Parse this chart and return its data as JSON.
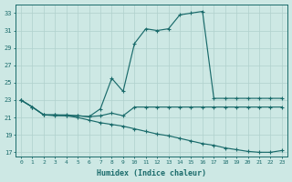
{
  "xlabel": "Humidex (Indice chaleur)",
  "bg_color": "#cde8e4",
  "line_color": "#1a6b6b",
  "grid_color": "#b0d0cc",
  "xlim": [
    -0.5,
    23.5
  ],
  "ylim": [
    16.5,
    34
  ],
  "yticks": [
    17,
    19,
    21,
    23,
    25,
    27,
    29,
    31,
    33
  ],
  "xticks": [
    0,
    1,
    2,
    3,
    4,
    5,
    6,
    7,
    8,
    9,
    10,
    11,
    12,
    13,
    14,
    15,
    16,
    17,
    18,
    19,
    20,
    21,
    22,
    23
  ],
  "line1_x": [
    0,
    1,
    2,
    3,
    4,
    5,
    6,
    7,
    8,
    9,
    10,
    11,
    12,
    13,
    14,
    15,
    16,
    17,
    18,
    19,
    20,
    21,
    22,
    23
  ],
  "line1_y": [
    23.0,
    22.2,
    21.3,
    21.2,
    21.2,
    21.2,
    21.1,
    22.0,
    25.5,
    24.0,
    29.5,
    31.2,
    31.0,
    31.2,
    32.8,
    33.0,
    33.2,
    23.2,
    23.2,
    23.2,
    23.2,
    23.2,
    23.2,
    23.2
  ],
  "line2_x": [
    0,
    1,
    2,
    3,
    4,
    5,
    6,
    7,
    8,
    9,
    10,
    11,
    12,
    13,
    14,
    15,
    16,
    17,
    18,
    19,
    20,
    21,
    22,
    23
  ],
  "line2_y": [
    23.0,
    22.2,
    21.3,
    21.3,
    21.3,
    21.2,
    21.1,
    21.2,
    21.5,
    21.2,
    22.2,
    22.2,
    22.2,
    22.2,
    22.2,
    22.2,
    22.2,
    22.2,
    22.2,
    22.2,
    22.2,
    22.2,
    22.2,
    22.2
  ],
  "line3_x": [
    0,
    1,
    2,
    3,
    4,
    5,
    6,
    7,
    8,
    9,
    10,
    11,
    12,
    13,
    14,
    15,
    16,
    17,
    18,
    19,
    20,
    21,
    22,
    23
  ],
  "line3_y": [
    23.0,
    22.2,
    21.3,
    21.3,
    21.2,
    21.0,
    20.7,
    20.4,
    20.2,
    20.0,
    19.7,
    19.4,
    19.1,
    18.9,
    18.6,
    18.3,
    18.0,
    17.8,
    17.5,
    17.3,
    17.1,
    17.0,
    17.0,
    17.2
  ]
}
